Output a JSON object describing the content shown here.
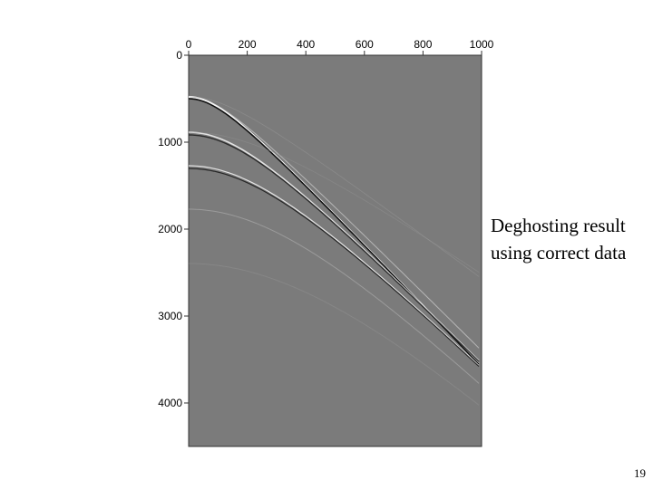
{
  "chart_data": {
    "type": "seismic",
    "xlim": [
      0,
      1000
    ],
    "xticks": [
      0,
      200,
      400,
      600,
      800,
      1000
    ],
    "ylim": [
      4500,
      0
    ],
    "yticks": [
      0,
      1000,
      2000,
      3000,
      4000
    ],
    "annotation": [
      "Deghosting result",
      "using correct data"
    ],
    "page_number": "19"
  }
}
